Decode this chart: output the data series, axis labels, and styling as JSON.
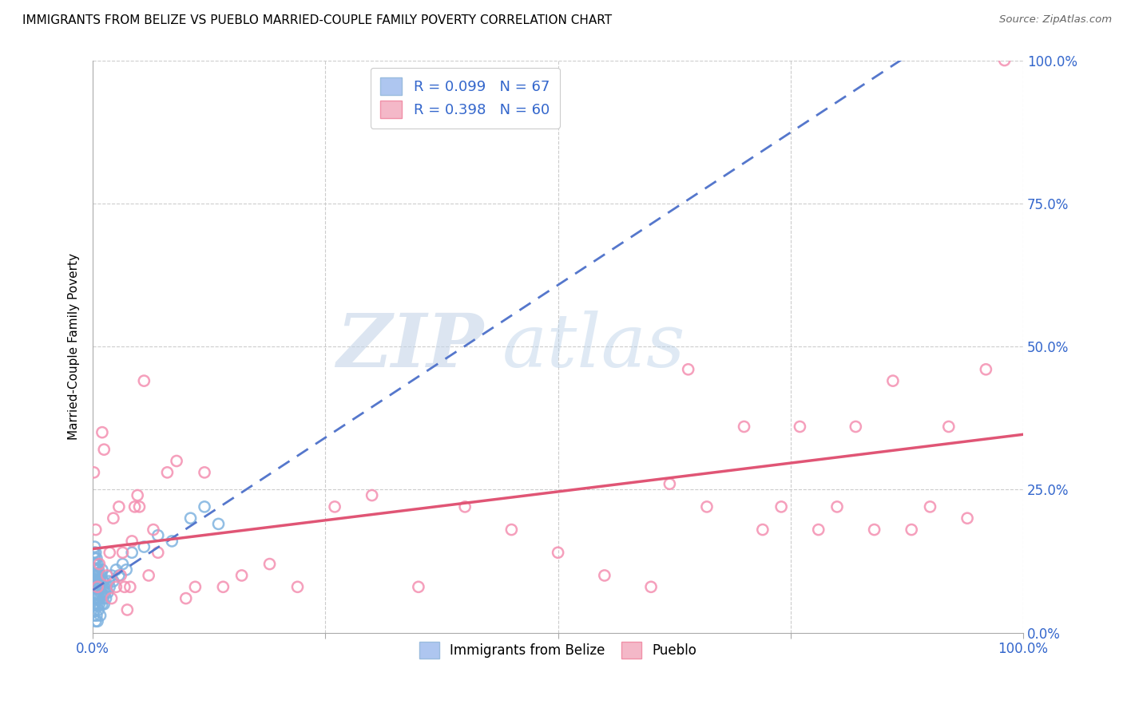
{
  "title": "IMMIGRANTS FROM BELIZE VS PUEBLO MARRIED-COUPLE FAMILY POVERTY CORRELATION CHART",
  "source": "Source: ZipAtlas.com",
  "ylabel": "Married-Couple Family Poverty",
  "legend1_label": "R = 0.099   N = 67",
  "legend2_label": "R = 0.398   N = 60",
  "legend1_color": "#aec6f0",
  "legend2_color": "#f4b8c8",
  "belize_line_color": "#5577cc",
  "pueblo_line_color": "#e05575",
  "watermark_zip": "ZIP",
  "watermark_atlas": "atlas",
  "belize_scatter_color": "#7fb3e0",
  "pueblo_scatter_color": "#f48fb1",
  "belize_x": [
    0.001,
    0.001,
    0.001,
    0.001,
    0.001,
    0.001,
    0.002,
    0.002,
    0.002,
    0.002,
    0.002,
    0.002,
    0.002,
    0.003,
    0.003,
    0.003,
    0.003,
    0.003,
    0.003,
    0.004,
    0.004,
    0.004,
    0.004,
    0.004,
    0.005,
    0.005,
    0.005,
    0.005,
    0.005,
    0.006,
    0.006,
    0.006,
    0.006,
    0.007,
    0.007,
    0.007,
    0.008,
    0.008,
    0.008,
    0.009,
    0.009,
    0.01,
    0.01,
    0.01,
    0.011,
    0.011,
    0.012,
    0.012,
    0.013,
    0.014,
    0.015,
    0.016,
    0.017,
    0.018,
    0.02,
    0.022,
    0.025,
    0.028,
    0.032,
    0.036,
    0.042,
    0.055,
    0.07,
    0.085,
    0.105,
    0.12,
    0.135
  ],
  "belize_y": [
    0.05,
    0.08,
    0.1,
    0.12,
    0.14,
    0.03,
    0.06,
    0.09,
    0.11,
    0.13,
    0.15,
    0.04,
    0.07,
    0.05,
    0.08,
    0.1,
    0.12,
    0.02,
    0.14,
    0.06,
    0.09,
    0.11,
    0.03,
    0.13,
    0.05,
    0.08,
    0.1,
    0.12,
    0.02,
    0.06,
    0.09,
    0.11,
    0.04,
    0.05,
    0.08,
    0.1,
    0.06,
    0.09,
    0.03,
    0.07,
    0.1,
    0.05,
    0.08,
    0.11,
    0.06,
    0.09,
    0.05,
    0.08,
    0.07,
    0.06,
    0.08,
    0.07,
    0.09,
    0.08,
    0.1,
    0.09,
    0.11,
    0.1,
    0.12,
    0.11,
    0.14,
    0.15,
    0.17,
    0.16,
    0.2,
    0.22,
    0.19
  ],
  "pueblo_x": [
    0.001,
    0.003,
    0.005,
    0.007,
    0.01,
    0.012,
    0.015,
    0.018,
    0.02,
    0.022,
    0.025,
    0.028,
    0.03,
    0.032,
    0.034,
    0.037,
    0.04,
    0.042,
    0.045,
    0.048,
    0.05,
    0.055,
    0.06,
    0.065,
    0.07,
    0.08,
    0.09,
    0.1,
    0.11,
    0.12,
    0.14,
    0.16,
    0.19,
    0.22,
    0.26,
    0.3,
    0.35,
    0.4,
    0.45,
    0.5,
    0.55,
    0.6,
    0.62,
    0.64,
    0.66,
    0.7,
    0.72,
    0.74,
    0.76,
    0.78,
    0.8,
    0.82,
    0.84,
    0.86,
    0.88,
    0.9,
    0.92,
    0.94,
    0.96,
    0.98
  ],
  "pueblo_y": [
    0.28,
    0.18,
    0.08,
    0.12,
    0.35,
    0.32,
    0.1,
    0.14,
    0.06,
    0.2,
    0.08,
    0.22,
    0.1,
    0.14,
    0.08,
    0.04,
    0.08,
    0.16,
    0.22,
    0.24,
    0.22,
    0.44,
    0.1,
    0.18,
    0.14,
    0.28,
    0.3,
    0.06,
    0.08,
    0.28,
    0.08,
    0.1,
    0.12,
    0.08,
    0.22,
    0.24,
    0.08,
    0.22,
    0.18,
    0.14,
    0.1,
    0.08,
    0.26,
    0.46,
    0.22,
    0.36,
    0.18,
    0.22,
    0.36,
    0.18,
    0.22,
    0.36,
    0.18,
    0.44,
    0.18,
    0.22,
    0.36,
    0.2,
    0.46,
    1.0
  ],
  "xlim": [
    0,
    1.0
  ],
  "ylim": [
    0,
    1.0
  ],
  "marker_size": 90,
  "grid_color": "#cccccc",
  "tick_color": "#3366cc"
}
